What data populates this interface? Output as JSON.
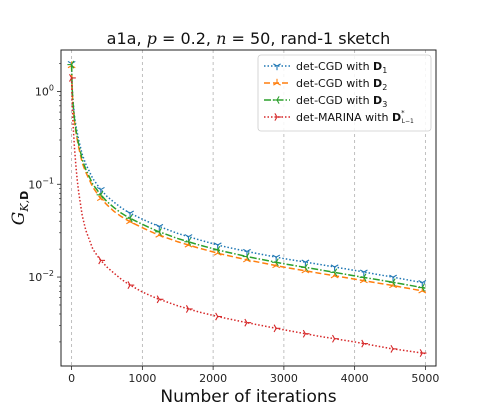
{
  "chart_data": {
    "type": "line",
    "title_parts": [
      "a1a, ",
      "p",
      " = 0.2, ",
      "n",
      " = 50, rand-1 sketch"
    ],
    "xlabel": "Number of iterations",
    "ylabel_parts": [
      "G",
      "K,",
      "D"
    ],
    "yscale": "log",
    "xlim": [
      -150,
      5150
    ],
    "ylim": [
      0.0011,
      2.8
    ],
    "xticks": [
      0,
      1000,
      2000,
      3000,
      4000,
      5000
    ],
    "xtick_labels": [
      "0",
      "1000",
      "2000",
      "3000",
      "4000",
      "5000"
    ],
    "yticks": [
      1,
      0.1,
      0.01
    ],
    "ytick_labels": [
      [
        "10",
        "0"
      ],
      [
        "10",
        "−1"
      ],
      [
        "10",
        "−2"
      ]
    ],
    "grid": "x-dashed",
    "legend_position": "top-right",
    "series": [
      {
        "name_parts": [
          "det-CGD with ",
          "D",
          "1",
          ""
        ],
        "color": "#1f77b4",
        "linestyle": "dotted",
        "marker": "tri_down",
        "markevery": 413,
        "points": [
          [
            0,
            2.0
          ],
          [
            5,
            1.3
          ],
          [
            10,
            1.05
          ],
          [
            20,
            0.8
          ],
          [
            40,
            0.55
          ],
          [
            60,
            0.43
          ],
          [
            80,
            0.36
          ],
          [
            100,
            0.3
          ],
          [
            150,
            0.21
          ],
          [
            200,
            0.165
          ],
          [
            300,
            0.115
          ],
          [
            400,
            0.09
          ],
          [
            500,
            0.074
          ],
          [
            600,
            0.064
          ],
          [
            700,
            0.056
          ],
          [
            800,
            0.05
          ],
          [
            1000,
            0.042
          ],
          [
            1200,
            0.036
          ],
          [
            1500,
            0.0295
          ],
          [
            1800,
            0.0252
          ],
          [
            2100,
            0.0218
          ],
          [
            2500,
            0.0187
          ],
          [
            3000,
            0.0158
          ],
          [
            3500,
            0.0137
          ],
          [
            4000,
            0.0118
          ],
          [
            4500,
            0.0101
          ],
          [
            5000,
            0.0086
          ]
        ]
      },
      {
        "name_parts": [
          "det-CGD with ",
          "D",
          "2",
          ""
        ],
        "color": "#ff7f0e",
        "linestyle": "dashed",
        "marker": "tri_up",
        "markevery": 413,
        "points": [
          [
            0,
            1.9
          ],
          [
            5,
            1.2
          ],
          [
            10,
            0.95
          ],
          [
            20,
            0.7
          ],
          [
            40,
            0.48
          ],
          [
            60,
            0.37
          ],
          [
            80,
            0.3
          ],
          [
            100,
            0.25
          ],
          [
            150,
            0.17
          ],
          [
            200,
            0.135
          ],
          [
            300,
            0.093
          ],
          [
            400,
            0.072
          ],
          [
            500,
            0.06
          ],
          [
            600,
            0.051
          ],
          [
            700,
            0.045
          ],
          [
            800,
            0.0405
          ],
          [
            1000,
            0.034
          ],
          [
            1200,
            0.029
          ],
          [
            1500,
            0.024
          ],
          [
            1800,
            0.0205
          ],
          [
            2100,
            0.0178
          ],
          [
            2500,
            0.0152
          ],
          [
            3000,
            0.0128
          ],
          [
            3500,
            0.011
          ],
          [
            4000,
            0.0095
          ],
          [
            4500,
            0.0082
          ],
          [
            5000,
            0.007
          ]
        ]
      },
      {
        "name_parts": [
          "det-CGD with ",
          "D",
          "3",
          ""
        ],
        "color": "#2ca02c",
        "linestyle": "dashdot",
        "marker": "tri_left",
        "markevery": 413,
        "points": [
          [
            0,
            1.95
          ],
          [
            5,
            1.25
          ],
          [
            10,
            1.0
          ],
          [
            20,
            0.74
          ],
          [
            40,
            0.51
          ],
          [
            60,
            0.39
          ],
          [
            80,
            0.32
          ],
          [
            100,
            0.27
          ],
          [
            150,
            0.185
          ],
          [
            200,
            0.145
          ],
          [
            300,
            0.1
          ],
          [
            400,
            0.079
          ],
          [
            500,
            0.065
          ],
          [
            600,
            0.056
          ],
          [
            700,
            0.049
          ],
          [
            800,
            0.044
          ],
          [
            1000,
            0.037
          ],
          [
            1200,
            0.0315
          ],
          [
            1500,
            0.026
          ],
          [
            1800,
            0.0222
          ],
          [
            2100,
            0.0193
          ],
          [
            2500,
            0.0165
          ],
          [
            3000,
            0.0139
          ],
          [
            3500,
            0.012
          ],
          [
            4000,
            0.0103
          ],
          [
            4500,
            0.0089
          ],
          [
            5000,
            0.0076
          ]
        ]
      },
      {
        "name_parts": [
          "det-MARINA with ",
          "D",
          "",
          "*L−1"
        ],
        "color": "#d62728",
        "linestyle": "dotted",
        "marker": "tri_right",
        "markevery": 413,
        "points": [
          [
            0,
            1.4
          ],
          [
            5,
            0.9
          ],
          [
            10,
            0.7
          ],
          [
            20,
            0.45
          ],
          [
            40,
            0.25
          ],
          [
            60,
            0.16
          ],
          [
            80,
            0.11
          ],
          [
            100,
            0.082
          ],
          [
            150,
            0.046
          ],
          [
            200,
            0.032
          ],
          [
            300,
            0.02
          ],
          [
            400,
            0.0155
          ],
          [
            500,
            0.0128
          ],
          [
            600,
            0.011
          ],
          [
            700,
            0.0095
          ],
          [
            800,
            0.0084
          ],
          [
            1000,
            0.0069
          ],
          [
            1200,
            0.0059
          ],
          [
            1500,
            0.0049
          ],
          [
            1800,
            0.0042
          ],
          [
            2100,
            0.0037
          ],
          [
            2500,
            0.0032
          ],
          [
            3000,
            0.0027
          ],
          [
            3500,
            0.0023
          ],
          [
            4000,
            0.002
          ],
          [
            4500,
            0.0017
          ],
          [
            5000,
            0.0015
          ]
        ]
      }
    ]
  }
}
